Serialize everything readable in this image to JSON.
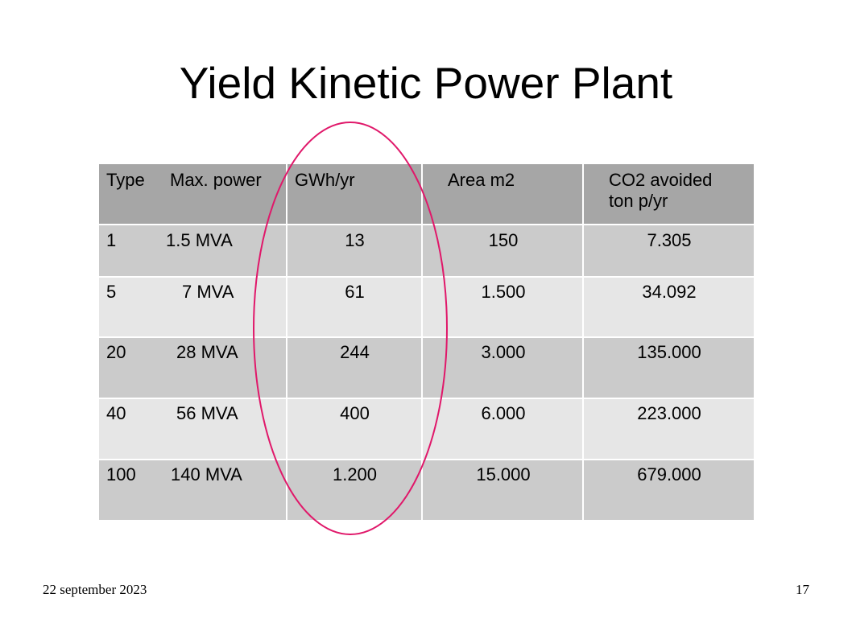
{
  "title": "Yield Kinetic Power Plant",
  "table": {
    "headers": {
      "type": "Type",
      "power": "Max. power",
      "gwh": "GWh/yr",
      "area": "Area m2",
      "co2_line1": "CO2 avoided",
      "co2_line2": "ton p/yr"
    },
    "rows": [
      {
        "type": "1",
        "power": "1.5 MVA",
        "gwh": "13",
        "area": "150",
        "co2": "7.305"
      },
      {
        "type": "5",
        "power": "7 MVA",
        "gwh": "61",
        "area": "1.500",
        "co2": "34.092"
      },
      {
        "type": "20",
        "power": "28 MVA",
        "gwh": "244",
        "area": "3.000",
        "co2": "135.000"
      },
      {
        "type": "40",
        "power": "56 MVA",
        "gwh": "400",
        "area": "6.000",
        "co2": "223.000"
      },
      {
        "type": "100",
        "power": "140 MVA",
        "gwh": "1.200",
        "area": "15.000",
        "co2": "679.000"
      }
    ]
  },
  "colors": {
    "header_bg": "#a6a6a6",
    "row_dark": "#cbcbcb",
    "row_light": "#e6e6e6",
    "highlight_ellipse": "#e0186a"
  },
  "footer": {
    "date": "22 september 2023",
    "page": "17"
  }
}
